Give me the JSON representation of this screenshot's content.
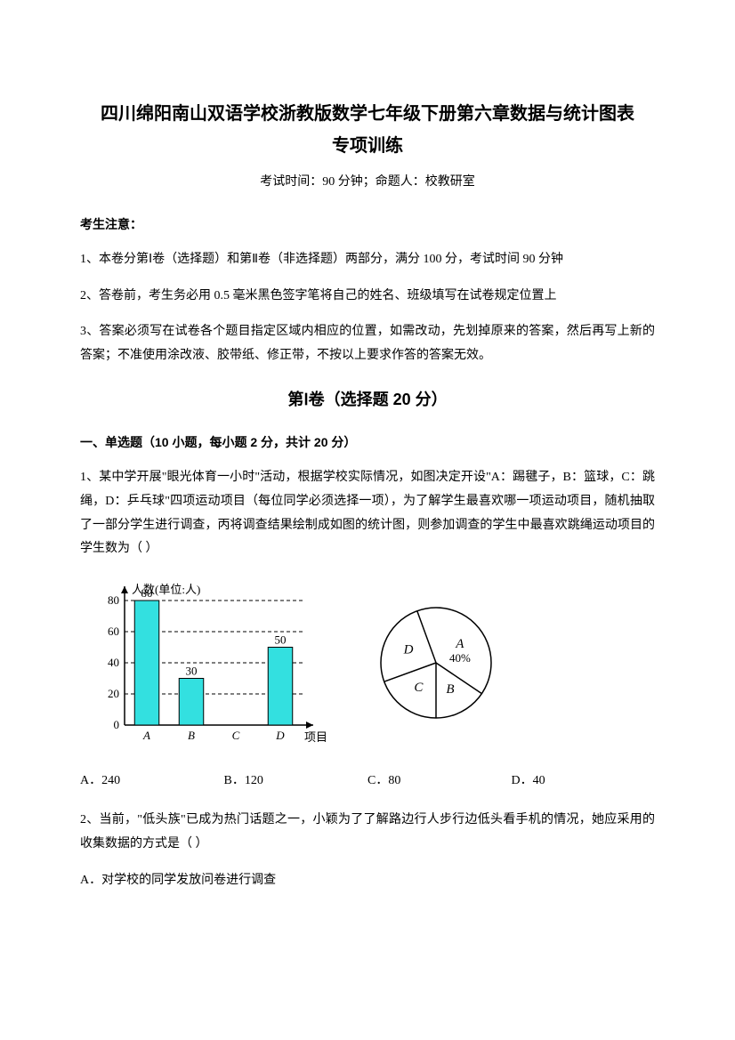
{
  "header": {
    "title_line1": "四川绵阳南山双语学校浙教版数学七年级下册第六章数据与统计图表",
    "title_line2": "专项训练",
    "exam_info": "考试时间：90 分钟；命题人：校教研室"
  },
  "notice": {
    "heading": "考生注意：",
    "items": [
      "1、本卷分第Ⅰ卷（选择题）和第Ⅱ卷（非选择题）两部分，满分 100 分，考试时间 90 分钟",
      "2、答卷前，考生务必用 0.5 毫米黑色签字笔将自己的姓名、班级填写在试卷规定位置上",
      "3、答案必须写在试卷各个题目指定区域内相应的位置，如需改动，先划掉原来的答案，然后再写上新的答案；不准使用涂改液、胶带纸、修正带，不按以上要求作答的答案无效。"
    ]
  },
  "section1": {
    "title": "第Ⅰ卷（选择题  20 分）",
    "sub_heading": "一、单选题（10 小题，每小题 2 分，共计 20 分）"
  },
  "q1": {
    "text": "1、某中学开展\"眼光体育一小时\"活动，根据学校实际情况，如图决定开设\"A：踢毽子，B：篮球，C：跳绳，D：乒乓球\"四项运动项目（每位同学必须选择一项），为了解学生最喜欢哪一项运动项目，随机抽取了一部分学生进行调查，丙将调查结果绘制成如图的统计图，则参加调查的学生中最喜欢跳绳运动项目的学生数为（ ）",
    "bar_chart": {
      "type": "bar",
      "y_label": "人数(单位:人)",
      "x_label": "项目",
      "categories": [
        "A",
        "B",
        "C",
        "D"
      ],
      "values": [
        80,
        30,
        null,
        50
      ],
      "value_labels": [
        "80",
        "30",
        "",
        "50"
      ],
      "bar_color": "#33e0e0",
      "bar_border": "#000000",
      "grid_color": "#000000",
      "y_ticks": [
        0,
        20,
        40,
        60,
        80
      ],
      "arrow_color": "#000000"
    },
    "pie_chart": {
      "type": "pie",
      "slices": [
        {
          "label": "A",
          "sublabel": "40%",
          "start": -20,
          "end": 124
        },
        {
          "label": "B",
          "start": 124,
          "end": 180
        },
        {
          "label": "C",
          "start": 180,
          "end": 250
        },
        {
          "label": "D",
          "start": 250,
          "end": 340
        }
      ],
      "stroke": "#000000",
      "fill": "#ffffff"
    },
    "options": {
      "a": "A．240",
      "b": "B．120",
      "c": "C．80",
      "d": "D．40"
    }
  },
  "q2": {
    "text": "2、当前，\"低头族\"已成为热门话题之一，小颖为了了解路边行人步行边低头看手机的情况，她应采用的收集数据的方式是（ ）",
    "opt_a": "A．对学校的同学发放问卷进行调查"
  }
}
